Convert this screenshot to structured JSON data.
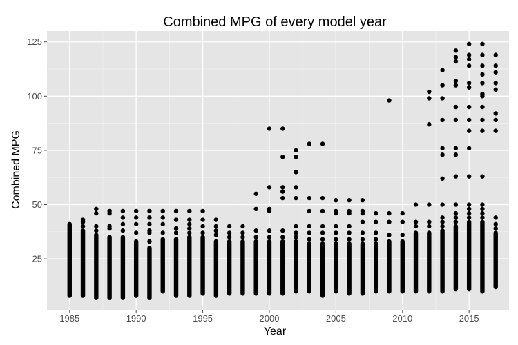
{
  "chart_data": {
    "type": "scatter",
    "title": "Combined MPG of every model year",
    "xlabel": "Year",
    "ylabel": "Combined MPG",
    "xlim": [
      1983.3,
      2018.0
    ],
    "ylim": [
      1.5,
      130.0
    ],
    "x_ticks": [
      1985,
      1990,
      1995,
      2000,
      2005,
      2010,
      2015
    ],
    "y_ticks": [
      25,
      50,
      75,
      100,
      125
    ],
    "grid": true,
    "colors": {
      "panel": "#e5e5e5",
      "grid": "#ffffff",
      "point": "#000000"
    },
    "series": [
      {
        "columns": [
          {
            "x": 1985,
            "min": 8,
            "max": 41,
            "extra": []
          },
          {
            "x": 1986,
            "min": 8,
            "max": 38,
            "extra": [
              40,
              42,
              43
            ]
          },
          {
            "x": 1987,
            "min": 7,
            "max": 36,
            "extra": [
              38,
              40,
              46,
              48
            ]
          },
          {
            "x": 1988,
            "min": 7,
            "max": 35,
            "extra": [
              39,
              40,
              46,
              47
            ]
          },
          {
            "x": 1989,
            "min": 7,
            "max": 35,
            "extra": [
              38,
              41,
              44,
              47
            ]
          },
          {
            "x": 1990,
            "min": 8,
            "max": 33,
            "extra": [
              37,
              41,
              44,
              47
            ]
          },
          {
            "x": 1991,
            "min": 7,
            "max": 30,
            "extra": [
              33,
              37,
              38,
              41,
              44,
              47
            ]
          },
          {
            "x": 1992,
            "min": 10,
            "max": 34,
            "extra": [
              37,
              41,
              44,
              47
            ]
          },
          {
            "x": 1993,
            "min": 8,
            "max": 34,
            "extra": [
              37,
              39,
              43,
              47
            ]
          },
          {
            "x": 1994,
            "min": 8,
            "max": 35,
            "extra": [
              37,
              39,
              41,
              43,
              47
            ]
          },
          {
            "x": 1995,
            "min": 9,
            "max": 35,
            "extra": [
              37,
              40,
              43,
              47
            ]
          },
          {
            "x": 1996,
            "min": 8,
            "max": 33,
            "extra": [
              36,
              38,
              40,
              43
            ]
          },
          {
            "x": 1997,
            "min": 9,
            "max": 33,
            "extra": [
              35,
              37,
              40
            ]
          },
          {
            "x": 1998,
            "min": 9,
            "max": 33,
            "extra": [
              35,
              37,
              40
            ]
          },
          {
            "x": 1999,
            "min": 9,
            "max": 33,
            "extra": [
              35,
              38,
              48,
              55
            ]
          },
          {
            "x": 2000,
            "min": 9,
            "max": 33,
            "extra": [
              35,
              38,
              47,
              48,
              58,
              85
            ]
          },
          {
            "x": 2001,
            "min": 9,
            "max": 33,
            "extra": [
              35,
              38,
              53,
              56,
              58,
              72,
              85
            ]
          },
          {
            "x": 2002,
            "min": 10,
            "max": 33,
            "extra": [
              35,
              37,
              40,
              53,
              58,
              65,
              72,
              75
            ]
          },
          {
            "x": 2003,
            "min": 10,
            "max": 32,
            "extra": [
              34,
              37,
              40,
              47,
              53,
              78
            ]
          },
          {
            "x": 2004,
            "min": 8,
            "max": 32,
            "extra": [
              34,
              37,
              40,
              47,
              53,
              78
            ]
          },
          {
            "x": 2005,
            "min": 10,
            "max": 32,
            "extra": [
              34,
              37,
              40,
              46,
              47,
              52
            ]
          },
          {
            "x": 2006,
            "min": 9,
            "max": 32,
            "extra": [
              34,
              37,
              40,
              46,
              47,
              52
            ]
          },
          {
            "x": 2007,
            "min": 9,
            "max": 32,
            "extra": [
              34,
              37,
              42,
              46,
              47,
              52
            ]
          },
          {
            "x": 2008,
            "min": 10,
            "max": 32,
            "extra": [
              34,
              37,
              42,
              46
            ]
          },
          {
            "x": 2009,
            "min": 10,
            "max": 33,
            "extra": [
              36,
              42,
              46,
              98
            ]
          },
          {
            "x": 2010,
            "min": 10,
            "max": 33,
            "extra": [
              36,
              42,
              46
            ]
          },
          {
            "x": 2011,
            "min": 10,
            "max": 37,
            "extra": [
              40,
              42,
              50
            ]
          },
          {
            "x": 2012,
            "min": 10,
            "max": 37,
            "extra": [
              40,
              42,
              50,
              87,
              99,
              102
            ]
          },
          {
            "x": 2013,
            "min": 10,
            "max": 38,
            "extra": [
              40,
              42,
              44,
              50,
              62,
              73,
              76,
              89,
              99,
              105,
              112
            ]
          },
          {
            "x": 2014,
            "min": 11,
            "max": 40,
            "extra": [
              42,
              44,
              46,
              50,
              63,
              73,
              76,
              89,
              95,
              105,
              107,
              116,
              118,
              121
            ]
          },
          {
            "x": 2015,
            "min": 11,
            "max": 42,
            "extra": [
              44,
              46,
              48,
              50,
              63,
              76,
              84,
              89,
              95,
              104,
              106,
              114,
              117,
              119,
              124
            ]
          },
          {
            "x": 2016,
            "min": 10,
            "max": 42,
            "extra": [
              44,
              46,
              48,
              50,
              63,
              84,
              89,
              95,
              100,
              101,
              106,
              110,
              114,
              119,
              124
            ]
          },
          {
            "x": 2017,
            "min": 12,
            "max": 37,
            "extra": [
              39,
              41,
              44,
              84,
              89,
              92,
              103,
              106,
              111,
              114,
              119
            ]
          }
        ]
      }
    ]
  }
}
